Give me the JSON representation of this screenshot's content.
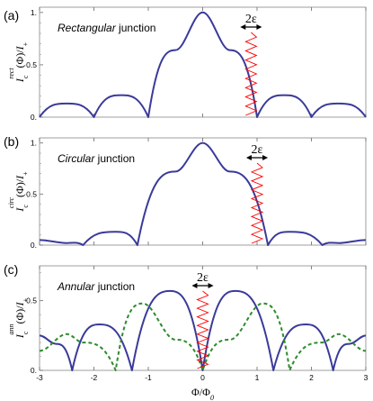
{
  "chart_data": [
    {
      "type": "line",
      "panel_label": "(a)",
      "title_italic": "Rectangular",
      "title_rest": " junction",
      "ylabel_sup": "rect",
      "xlim": [
        -3,
        3
      ],
      "ylim": [
        0,
        1.05
      ],
      "yticks": [
        "0.",
        "0.5",
        "1."
      ],
      "xticks": [],
      "xlabel": "",
      "series": [
        {
          "name": "",
          "color": "#3a3a9a",
          "style": "solid",
          "func": "sinc",
          "x": [
            -3,
            -2.5,
            -2,
            -1.5,
            -1,
            -0.5,
            0,
            0.5,
            1,
            1.5,
            2,
            2.5,
            3
          ],
          "y": [
            0,
            0.13,
            0,
            0.21,
            0,
            0.64,
            1,
            0.64,
            0,
            0.21,
            0,
            0.13,
            0
          ]
        }
      ],
      "annotation": {
        "label": "2ε",
        "x": 0.89,
        "width": 0.2,
        "color": "#ff0000"
      }
    },
    {
      "type": "line",
      "panel_label": "(b)",
      "title_italic": "Circular",
      "title_rest": " junction",
      "ylabel_sup": "circ",
      "xlim": [
        -3,
        3
      ],
      "ylim": [
        0,
        1.05
      ],
      "yticks": [
        "0.",
        "0.5",
        "1."
      ],
      "xticks": [],
      "xlabel": "",
      "series": [
        {
          "name": "",
          "color": "#3a3a9a",
          "style": "solid",
          "func": "airy",
          "x": [
            -3,
            -2.5,
            -2.2,
            -1.6,
            -1.2,
            -0.5,
            0,
            0.5,
            1.2,
            1.6,
            2.2,
            2.5,
            3
          ],
          "y": [
            0.05,
            0.02,
            0,
            0.13,
            0,
            0.72,
            1,
            0.72,
            0,
            0.13,
            0,
            0.02,
            0.05
          ]
        }
      ],
      "annotation": {
        "label": "2ε",
        "x": 1.0,
        "width": 0.2,
        "color": "#ff0000"
      }
    },
    {
      "type": "line",
      "panel_label": "(c)",
      "title_italic": "Annular",
      "title_rest": " junction",
      "ylabel_sup": "ann",
      "xlim": [
        -3,
        3
      ],
      "ylim": [
        0,
        0.75
      ],
      "yticks": [
        "0.",
        "0.5"
      ],
      "xticks": [
        "-3",
        "-2",
        "-1",
        "0",
        "1",
        "2",
        "3"
      ],
      "xlabel": "Φ/Φ",
      "xlabel_sub": "0",
      "series": [
        {
          "name": "",
          "color": "#3a3a9a",
          "style": "solid",
          "func": "j0abs",
          "x": [
            -3,
            -2.7,
            -2.4,
            -1.9,
            -1.3,
            -0.6,
            0,
            0.6,
            1.3,
            1.9,
            2.4,
            2.7,
            3
          ],
          "y": [
            0.25,
            0.19,
            0,
            0.33,
            0,
            0.57,
            0,
            0.57,
            0,
            0.33,
            0,
            0.19,
            0.25
          ]
        },
        {
          "name": "",
          "color": "#2e8b2e",
          "style": "dashed",
          "func": "j1abs",
          "x": [
            -3,
            -2.5,
            -2.2,
            -1.6,
            -1.1,
            -0.5,
            0,
            0.5,
            1.1,
            1.6,
            2.2,
            2.5,
            3
          ],
          "y": [
            0.14,
            0.26,
            0.2,
            0,
            0.48,
            0.22,
            0,
            0.22,
            0.48,
            0,
            0.2,
            0.26,
            0.14
          ]
        }
      ],
      "annotation": {
        "label": "2ε",
        "x": 0.0,
        "width": 0.2,
        "color": "#ff0000"
      }
    }
  ]
}
